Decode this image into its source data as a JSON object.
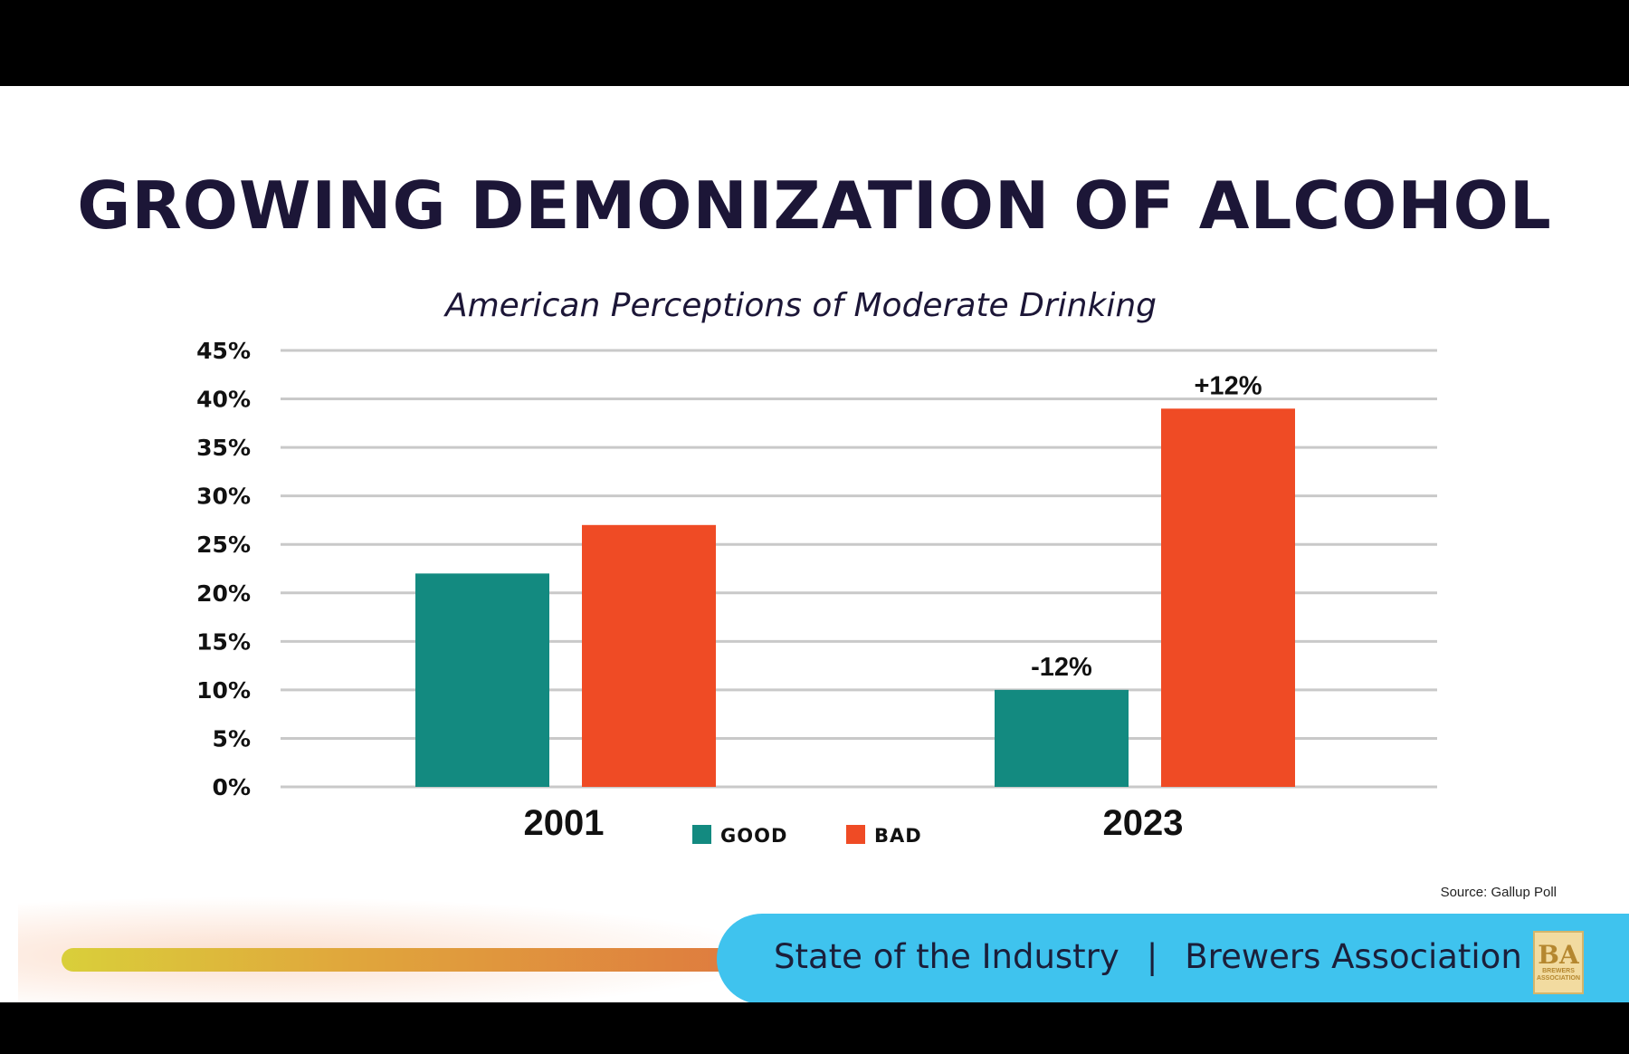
{
  "title": "GROWING DEMONIZATION OF ALCOHOL",
  "source": {
    "label": "Source:",
    "value": "Gallup Poll"
  },
  "footer": {
    "left": "State of the Industry",
    "separator": "|",
    "right": "Brewers Association"
  },
  "logo": {
    "monogram": "BA",
    "line1": "BREWERS",
    "line2": "ASSOCIATION"
  },
  "colors": {
    "good": "#138a80",
    "bad": "#ef4b25",
    "title": "#1c1637",
    "band": "#3fc3ee"
  },
  "chart_data": {
    "type": "bar",
    "title": "American Perceptions of Moderate Drinking",
    "categories": [
      "2001",
      "2023"
    ],
    "series": [
      {
        "name": "GOOD",
        "values": [
          22,
          10
        ],
        "color": "#138a80"
      },
      {
        "name": "BAD",
        "values": [
          27,
          39
        ],
        "color": "#ef4b25"
      }
    ],
    "annotations": [
      {
        "category": "2023",
        "series": "GOOD",
        "text": "-12%"
      },
      {
        "category": "2023",
        "series": "BAD",
        "text": "+12%"
      }
    ],
    "yticks": [
      "0%",
      "5%",
      "10%",
      "15%",
      "20%",
      "25%",
      "30%",
      "35%",
      "40%",
      "45%"
    ],
    "ylim": [
      0,
      45
    ],
    "grid": true,
    "legend": "bottom-center"
  }
}
